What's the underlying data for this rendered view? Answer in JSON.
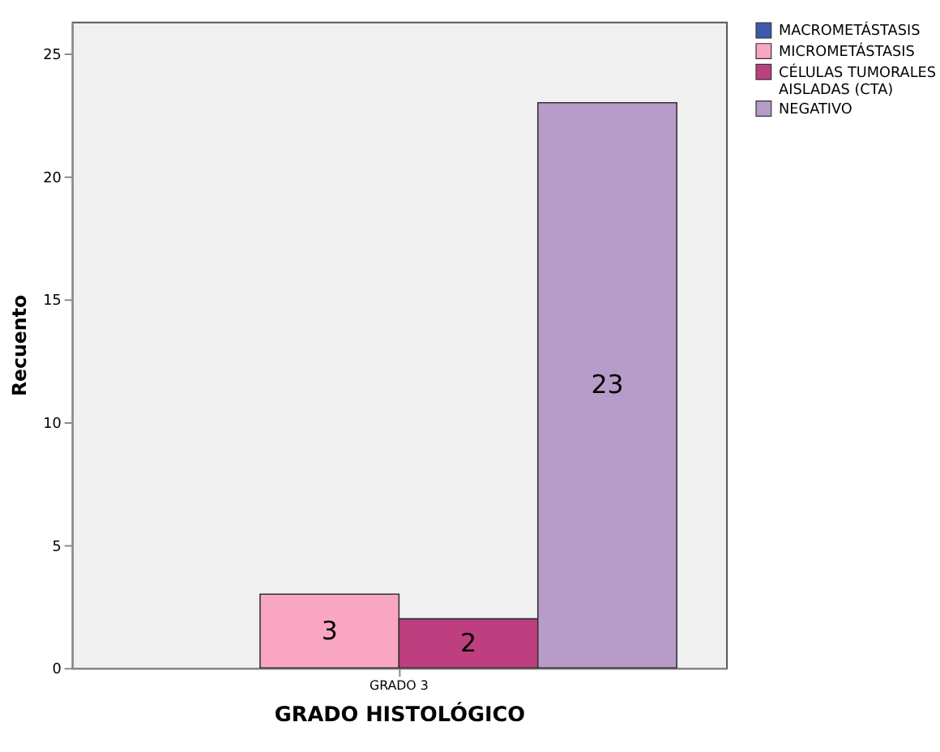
{
  "chart_data": {
    "type": "bar",
    "xlabel": "GRADO HISTOLÓGICO",
    "ylabel": "Recuento",
    "categories": [
      "GRADO 3"
    ],
    "series": [
      {
        "name": "MACROMETÁSTASIS",
        "color": "#3a5bab",
        "values": [
          null
        ]
      },
      {
        "name": "MICROMETÁSTASIS",
        "color": "#f9a6c3",
        "values": [
          3
        ]
      },
      {
        "name": "CÉLULAS TUMORALES AISLADAS (CTA)",
        "color": "#be3f7f",
        "values": [
          2
        ]
      },
      {
        "name": "NEGATIVO",
        "color": "#b79bc9",
        "values": [
          23
        ]
      }
    ],
    "ylim": [
      0,
      26.3
    ],
    "yticks": [
      0,
      5,
      10,
      15,
      20,
      25
    ],
    "grid": false,
    "legend": "right",
    "data_labels": true
  }
}
